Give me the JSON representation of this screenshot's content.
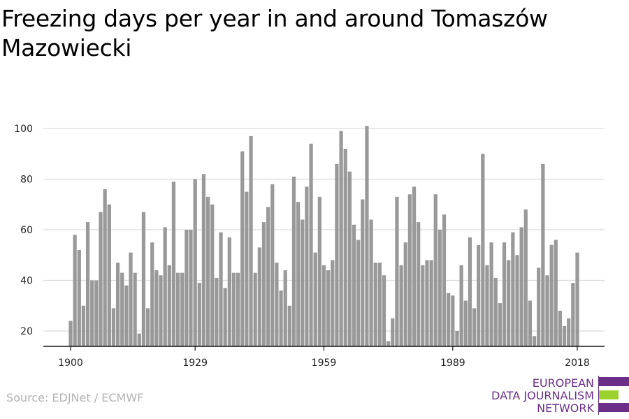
{
  "title": "Freezing days per year in and around Tomaszów Mazowiecki",
  "source": "Source: EDJNet / ECMWF",
  "logo": {
    "line1": "EUROPEAN",
    "line2": "DATA JOURNALISM",
    "line3": "NETWORK",
    "colors": {
      "purple": "#6b2f8a",
      "green": "#9bd22d"
    }
  },
  "chart_data": {
    "type": "bar",
    "title": "Freezing days per year in and around Tomaszów Mazowiecki",
    "xlabel": "",
    "ylabel": "",
    "x_start": 1900,
    "x_ticks": [
      "1900",
      "1929",
      "1959",
      "1989",
      "2018"
    ],
    "y_ticks": [
      20,
      40,
      60,
      80,
      100
    ],
    "ylim": [
      14,
      102
    ],
    "grid": true,
    "bar_color": "#999999",
    "years": [
      1900,
      1901,
      1902,
      1903,
      1904,
      1905,
      1906,
      1907,
      1908,
      1909,
      1910,
      1911,
      1912,
      1913,
      1914,
      1915,
      1916,
      1917,
      1918,
      1919,
      1920,
      1921,
      1922,
      1923,
      1924,
      1925,
      1926,
      1927,
      1928,
      1929,
      1930,
      1931,
      1932,
      1933,
      1934,
      1935,
      1936,
      1937,
      1938,
      1939,
      1940,
      1941,
      1942,
      1943,
      1944,
      1945,
      1946,
      1947,
      1948,
      1949,
      1950,
      1951,
      1952,
      1953,
      1954,
      1955,
      1956,
      1957,
      1958,
      1959,
      1960,
      1961,
      1962,
      1963,
      1964,
      1965,
      1966,
      1967,
      1968,
      1969,
      1970,
      1971,
      1972,
      1973,
      1974,
      1975,
      1976,
      1977,
      1978,
      1979,
      1980,
      1981,
      1982,
      1983,
      1984,
      1985,
      1986,
      1987,
      1988,
      1989,
      1990,
      1991,
      1992,
      1993,
      1994,
      1995,
      1996,
      1997,
      1998,
      1999,
      2000,
      2001,
      2002,
      2003,
      2004,
      2005,
      2006,
      2007,
      2008,
      2009,
      2010,
      2011,
      2012,
      2013,
      2014,
      2015,
      2016,
      2017,
      2018
    ],
    "values": [
      24,
      58,
      52,
      30,
      63,
      40,
      40,
      67,
      76,
      70,
      29,
      47,
      43,
      38,
      51,
      43,
      19,
      67,
      29,
      55,
      44,
      42,
      61,
      46,
      79,
      43,
      43,
      60,
      60,
      80,
      39,
      82,
      73,
      70,
      41,
      59,
      37,
      57,
      43,
      43,
      91,
      75,
      97,
      43,
      53,
      63,
      69,
      78,
      47,
      36,
      44,
      30,
      81,
      71,
      64,
      77,
      94,
      51,
      73,
      46,
      44,
      48,
      86,
      99,
      92,
      83,
      62,
      56,
      72,
      101,
      64,
      47,
      47,
      42,
      16,
      25,
      73,
      46,
      55,
      74,
      77,
      63,
      46,
      48,
      48,
      74,
      60,
      66,
      35,
      34,
      20,
      46,
      32,
      57,
      29,
      54,
      90,
      46,
      55,
      41,
      31,
      55,
      48,
      59,
      50,
      61,
      68,
      32,
      18,
      45,
      86,
      42,
      54,
      56,
      28,
      22,
      25,
      39,
      51
    ]
  }
}
